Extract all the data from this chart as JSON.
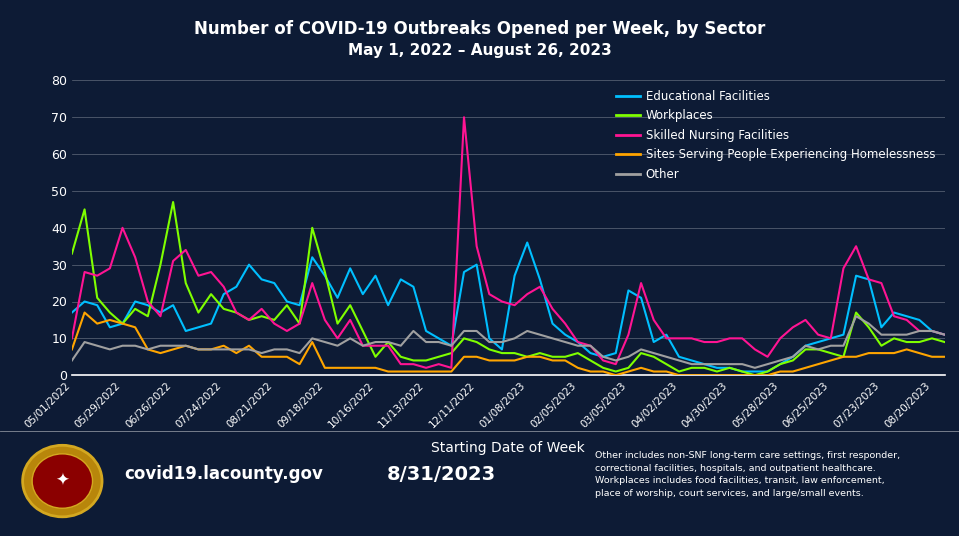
{
  "title_line1": "Number of COVID-19 Outbreaks Opened per Week, by Sector",
  "title_line2": "May 1, 2022 – August 26, 2023",
  "xlabel": "Starting Date of Week",
  "background_color": "#0d1b35",
  "text_color": "#ffffff",
  "ylim": [
    0,
    80
  ],
  "yticks": [
    0,
    10,
    20,
    30,
    40,
    50,
    60,
    70,
    80
  ],
  "footer_left": "covid19.lacounty.gov",
  "footer_center": "8/31/2023",
  "footer_right": "Other includes non-SNF long-term care settings, first responder,\ncorrectional facilities, hospitals, and outpatient healthcare.\nWorkplaces includes food facilities, transit, law enforcement,\nplace of worship, court services, and large/small events.",
  "series": {
    "Educational Facilities": {
      "color": "#00bfff",
      "data": [
        17,
        20,
        19,
        13,
        14,
        20,
        19,
        17,
        19,
        12,
        13,
        14,
        22,
        24,
        30,
        26,
        25,
        20,
        19,
        32,
        27,
        21,
        29,
        22,
        27,
        19,
        26,
        24,
        12,
        10,
        8,
        28,
        30,
        10,
        7,
        27,
        36,
        26,
        14,
        11,
        9,
        6,
        5,
        6,
        23,
        21,
        9,
        11,
        5,
        4,
        3,
        2,
        2,
        1,
        1,
        1,
        3,
        5,
        8,
        9,
        10,
        11,
        27,
        26,
        13,
        17,
        16,
        15,
        12,
        11
      ]
    },
    "Workplaces": {
      "color": "#7fff00",
      "data": [
        33,
        45,
        21,
        17,
        14,
        18,
        16,
        30,
        47,
        25,
        17,
        22,
        18,
        17,
        15,
        16,
        15,
        19,
        14,
        40,
        28,
        14,
        19,
        12,
        5,
        9,
        5,
        4,
        4,
        5,
        6,
        10,
        9,
        7,
        6,
        6,
        5,
        6,
        5,
        5,
        6,
        4,
        2,
        1,
        2,
        6,
        5,
        3,
        1,
        2,
        2,
        1,
        2,
        1,
        0,
        1,
        3,
        4,
        7,
        7,
        6,
        5,
        17,
        13,
        8,
        10,
        9,
        9,
        10,
        9
      ]
    },
    "Skilled Nursing Facilities": {
      "color": "#ff1493",
      "data": [
        10,
        28,
        27,
        29,
        40,
        32,
        20,
        16,
        31,
        34,
        27,
        28,
        24,
        17,
        15,
        18,
        14,
        12,
        14,
        25,
        15,
        10,
        15,
        8,
        8,
        8,
        3,
        3,
        2,
        3,
        2,
        70,
        35,
        22,
        20,
        19,
        22,
        24,
        18,
        14,
        9,
        8,
        4,
        3,
        11,
        25,
        15,
        10,
        10,
        10,
        9,
        9,
        10,
        10,
        7,
        5,
        10,
        13,
        15,
        11,
        10,
        29,
        35,
        26,
        25,
        16,
        15,
        12,
        12,
        11
      ]
    },
    "Sites Serving People Experiencing Homelessness": {
      "color": "#ffa500",
      "data": [
        7,
        17,
        14,
        15,
        14,
        13,
        7,
        6,
        7,
        8,
        7,
        7,
        8,
        6,
        8,
        5,
        5,
        5,
        3,
        9,
        2,
        2,
        2,
        2,
        2,
        1,
        1,
        1,
        1,
        1,
        1,
        5,
        5,
        4,
        4,
        4,
        5,
        5,
        4,
        4,
        2,
        1,
        1,
        0,
        1,
        2,
        1,
        1,
        0,
        0,
        0,
        0,
        0,
        0,
        0,
        0,
        1,
        1,
        2,
        3,
        4,
        5,
        5,
        6,
        6,
        6,
        7,
        6,
        5,
        5
      ]
    },
    "Other": {
      "color": "#a0a0a0",
      "data": [
        4,
        9,
        8,
        7,
        8,
        8,
        7,
        8,
        8,
        8,
        7,
        7,
        7,
        7,
        7,
        6,
        7,
        7,
        6,
        10,
        9,
        8,
        10,
        8,
        9,
        9,
        8,
        12,
        9,
        9,
        8,
        12,
        12,
        9,
        9,
        10,
        12,
        11,
        10,
        9,
        8,
        8,
        5,
        4,
        5,
        7,
        6,
        5,
        4,
        3,
        3,
        3,
        3,
        3,
        2,
        3,
        4,
        5,
        8,
        7,
        8,
        8,
        16,
        14,
        11,
        11,
        11,
        12,
        12,
        11
      ]
    }
  },
  "x_tick_labels": [
    "05/01/2022",
    "05/29/2022",
    "06/26/2022",
    "07/24/2022",
    "08/21/2022",
    "09/18/2022",
    "10/16/2022",
    "11/13/2022",
    "12/11/2022",
    "01/08/2023",
    "02/05/2023",
    "03/05/2023",
    "04/02/2023",
    "04/30/2023",
    "05/28/2023",
    "06/25/2023",
    "07/23/2023",
    "08/20/2023"
  ],
  "x_tick_positions": [
    0,
    4,
    8,
    12,
    16,
    20,
    24,
    28,
    32,
    36,
    40,
    44,
    48,
    52,
    56,
    60,
    64,
    68
  ]
}
